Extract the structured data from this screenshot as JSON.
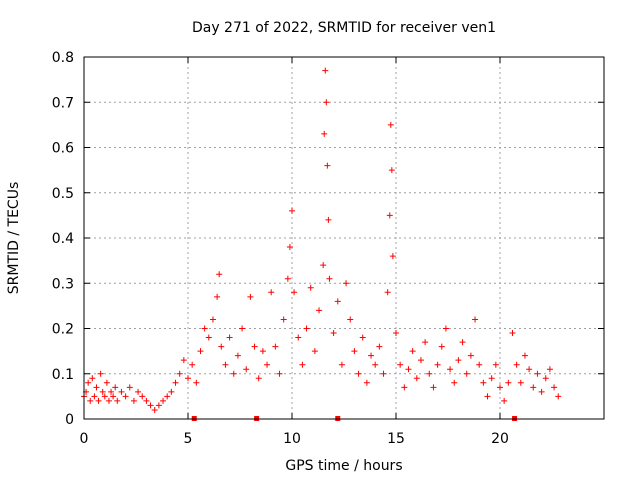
{
  "chart_data": {
    "type": "scatter",
    "title": "Day 271 of 2022, SRMTID for receiver ven1",
    "xlabel": "GPS time / hours",
    "ylabel": "SRMTID / TECUs",
    "xlim": [
      0,
      25
    ],
    "ylim": [
      0,
      0.8
    ],
    "xticks": [
      "0",
      "5",
      "10",
      "15",
      "20"
    ],
    "yticks": [
      "0",
      "0.1",
      "0.2",
      "0.3",
      "0.4",
      "0.5",
      "0.6",
      "0.7",
      "0.8"
    ],
    "grid": true,
    "marker": "+",
    "color": "#ff0000",
    "series": [
      {
        "name": "SRMTID",
        "points": [
          [
            0.0,
            0.05
          ],
          [
            0.1,
            0.06
          ],
          [
            0.2,
            0.08
          ],
          [
            0.3,
            0.04
          ],
          [
            0.4,
            0.09
          ],
          [
            0.5,
            0.05
          ],
          [
            0.6,
            0.07
          ],
          [
            0.7,
            0.04
          ],
          [
            0.8,
            0.1
          ],
          [
            0.9,
            0.06
          ],
          [
            1.0,
            0.05
          ],
          [
            1.1,
            0.08
          ],
          [
            1.2,
            0.04
          ],
          [
            1.3,
            0.06
          ],
          [
            1.4,
            0.05
          ],
          [
            1.5,
            0.07
          ],
          [
            1.6,
            0.04
          ],
          [
            1.8,
            0.06
          ],
          [
            2.0,
            0.05
          ],
          [
            2.2,
            0.07
          ],
          [
            2.4,
            0.04
          ],
          [
            2.6,
            0.06
          ],
          [
            2.8,
            0.05
          ],
          [
            3.0,
            0.04
          ],
          [
            3.2,
            0.03
          ],
          [
            3.4,
            0.02
          ],
          [
            3.6,
            0.03
          ],
          [
            3.8,
            0.04
          ],
          [
            4.0,
            0.05
          ],
          [
            4.2,
            0.06
          ],
          [
            4.4,
            0.08
          ],
          [
            4.6,
            0.1
          ],
          [
            4.8,
            0.13
          ],
          [
            5.0,
            0.09
          ],
          [
            5.2,
            0.12
          ],
          [
            5.4,
            0.08
          ],
          [
            5.6,
            0.15
          ],
          [
            5.8,
            0.2
          ],
          [
            6.0,
            0.18
          ],
          [
            6.2,
            0.22
          ],
          [
            6.4,
            0.27
          ],
          [
            6.5,
            0.32
          ],
          [
            6.6,
            0.16
          ],
          [
            6.8,
            0.12
          ],
          [
            7.0,
            0.18
          ],
          [
            7.2,
            0.1
          ],
          [
            7.4,
            0.14
          ],
          [
            7.6,
            0.2
          ],
          [
            7.8,
            0.11
          ],
          [
            8.0,
            0.27
          ],
          [
            8.2,
            0.16
          ],
          [
            8.4,
            0.09
          ],
          [
            8.6,
            0.15
          ],
          [
            8.8,
            0.12
          ],
          [
            9.0,
            0.28
          ],
          [
            9.2,
            0.16
          ],
          [
            9.4,
            0.1
          ],
          [
            9.6,
            0.22
          ],
          [
            9.8,
            0.31
          ],
          [
            9.9,
            0.38
          ],
          [
            10.0,
            0.46
          ],
          [
            10.1,
            0.28
          ],
          [
            10.3,
            0.18
          ],
          [
            10.5,
            0.12
          ],
          [
            10.7,
            0.2
          ],
          [
            10.9,
            0.29
          ],
          [
            11.1,
            0.15
          ],
          [
            11.3,
            0.24
          ],
          [
            11.5,
            0.34
          ],
          [
            11.55,
            0.63
          ],
          [
            11.6,
            0.77
          ],
          [
            11.65,
            0.7
          ],
          [
            11.7,
            0.56
          ],
          [
            11.75,
            0.44
          ],
          [
            11.8,
            0.31
          ],
          [
            12.0,
            0.19
          ],
          [
            12.2,
            0.26
          ],
          [
            12.4,
            0.12
          ],
          [
            12.6,
            0.3
          ],
          [
            12.8,
            0.22
          ],
          [
            13.0,
            0.15
          ],
          [
            13.2,
            0.1
          ],
          [
            13.4,
            0.18
          ],
          [
            13.6,
            0.08
          ],
          [
            13.8,
            0.14
          ],
          [
            14.0,
            0.12
          ],
          [
            14.2,
            0.16
          ],
          [
            14.4,
            0.1
          ],
          [
            14.6,
            0.28
          ],
          [
            14.7,
            0.45
          ],
          [
            14.75,
            0.65
          ],
          [
            14.8,
            0.55
          ],
          [
            14.85,
            0.36
          ],
          [
            15.0,
            0.19
          ],
          [
            15.2,
            0.12
          ],
          [
            15.4,
            0.07
          ],
          [
            15.6,
            0.11
          ],
          [
            15.8,
            0.15
          ],
          [
            16.0,
            0.09
          ],
          [
            16.2,
            0.13
          ],
          [
            16.4,
            0.17
          ],
          [
            16.6,
            0.1
          ],
          [
            16.8,
            0.07
          ],
          [
            17.0,
            0.12
          ],
          [
            17.2,
            0.16
          ],
          [
            17.4,
            0.2
          ],
          [
            17.6,
            0.11
          ],
          [
            17.8,
            0.08
          ],
          [
            18.0,
            0.13
          ],
          [
            18.2,
            0.17
          ],
          [
            18.4,
            0.1
          ],
          [
            18.6,
            0.14
          ],
          [
            18.8,
            0.22
          ],
          [
            19.0,
            0.12
          ],
          [
            19.2,
            0.08
          ],
          [
            19.4,
            0.05
          ],
          [
            19.6,
            0.09
          ],
          [
            19.8,
            0.12
          ],
          [
            20.0,
            0.07
          ],
          [
            20.2,
            0.04
          ],
          [
            20.4,
            0.08
          ],
          [
            20.6,
            0.19
          ],
          [
            20.8,
            0.12
          ],
          [
            21.0,
            0.08
          ],
          [
            21.2,
            0.14
          ],
          [
            21.4,
            0.11
          ],
          [
            21.6,
            0.07
          ],
          [
            21.8,
            0.1
          ],
          [
            22.0,
            0.06
          ],
          [
            22.2,
            0.09
          ],
          [
            22.4,
            0.11
          ],
          [
            22.6,
            0.07
          ],
          [
            22.8,
            0.05
          ]
        ]
      }
    ],
    "gap_markers_x": [
      5.3,
      8.3,
      12.2,
      20.7
    ]
  }
}
